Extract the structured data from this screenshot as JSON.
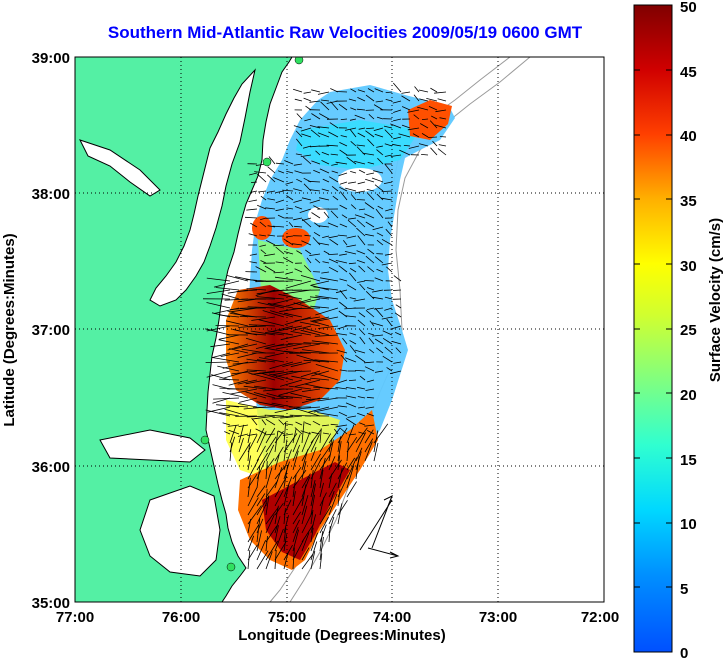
{
  "title": "Southern Mid-Atlantic Raw Velocities 2009/05/19 0600 GMT",
  "xlabel": "Longitude (Degrees:Minutes)",
  "ylabel": "Latitude (Degrees:Minutes)",
  "x_ticks": [
    "77:00",
    "76:00",
    "75:00",
    "74:00",
    "73:00",
    "72:00"
  ],
  "y_ticks": [
    "39:00",
    "38:00",
    "37:00",
    "36:00",
    "35:00"
  ],
  "colorbar": {
    "label": "Surface Velocity (cm/s)",
    "ticks": [
      "50",
      "45",
      "40",
      "35",
      "30",
      "25",
      "20",
      "15",
      "10",
      "5",
      "0"
    ],
    "range": [
      0,
      50
    ],
    "colors": [
      "#0050ff",
      "#00b4ff",
      "#00ffff",
      "#40ffb0",
      "#a0ff40",
      "#ffff00",
      "#ffb000",
      "#ff4000",
      "#d00000",
      "#800000"
    ]
  },
  "colors": {
    "land": "#54f0a4",
    "water": "#ffffff",
    "coast": "#000000",
    "bathymetry": "#9a9a9a",
    "title": "#0000ff"
  },
  "map_extent": {
    "lon": [
      -77,
      -72
    ],
    "lat": [
      35,
      39
    ]
  },
  "grid": true,
  "legend_vectors": "reference arrows near 74:00W 35:30N"
}
